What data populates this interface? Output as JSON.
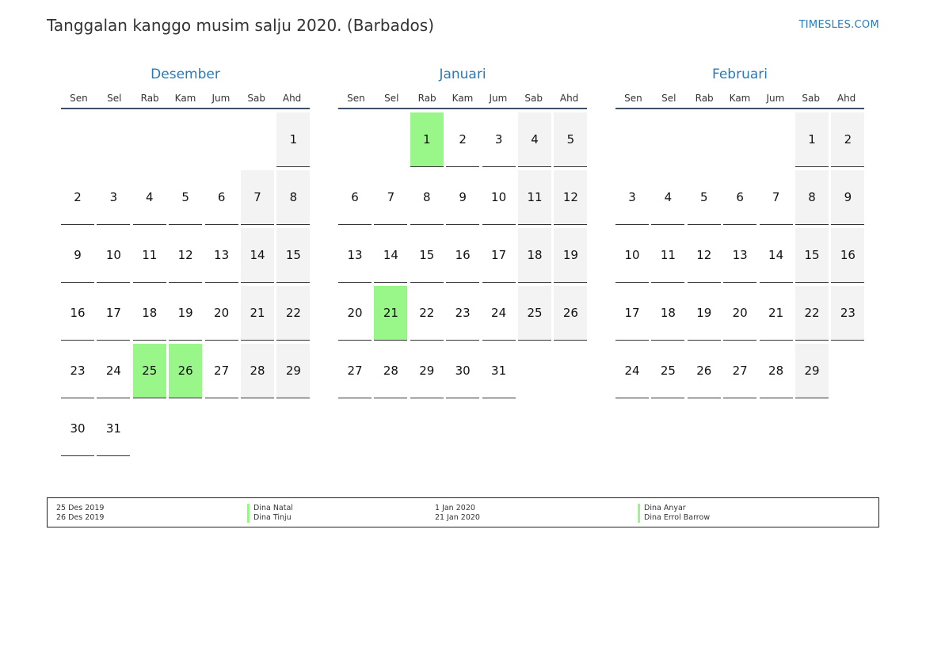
{
  "title": "Tanggalan kanggo musim salju 2020. (Barbados)",
  "brand": "TIMESLES.COM",
  "colors": {
    "accent": "#2a7ab8",
    "holiday": "#99f78a",
    "weekend": "#f3f3f3"
  },
  "weekdays": [
    "Sen",
    "Sel",
    "Rab",
    "Kam",
    "Jum",
    "Sab",
    "Ahd"
  ],
  "months": [
    {
      "name": "Desember",
      "start_offset": 6,
      "days": 31,
      "holidays": [
        25,
        26
      ]
    },
    {
      "name": "Januari",
      "start_offset": 2,
      "days": 31,
      "holidays": [
        1,
        21
      ]
    },
    {
      "name": "Februari",
      "start_offset": 5,
      "days": 29,
      "holidays": []
    }
  ],
  "legend": [
    {
      "date": "25 Des 2019",
      "name": "Dina Natal"
    },
    {
      "date": "26 Des 2019",
      "name": "Dina Tinju"
    },
    {
      "date": "1 Jan 2020",
      "name": "Dina Anyar"
    },
    {
      "date": "21 Jan 2020",
      "name": "Dina Errol Barrow"
    }
  ]
}
